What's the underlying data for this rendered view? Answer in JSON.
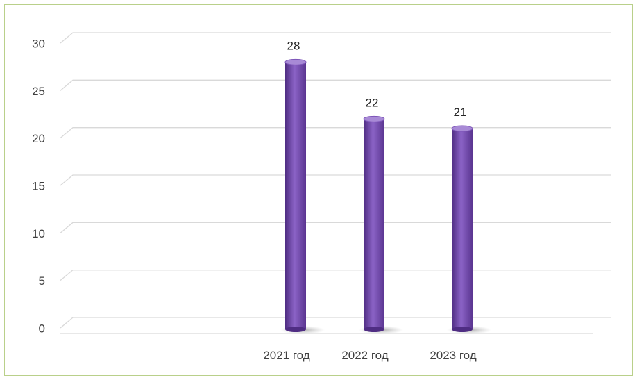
{
  "chart_data": {
    "type": "bar",
    "categories": [
      "2021 год",
      "2022 год",
      "2023 год"
    ],
    "values": [
      28,
      22,
      21
    ],
    "data_labels": [
      "28",
      "22",
      "21"
    ],
    "ylim": [
      0,
      30
    ],
    "yticks": [
      0,
      5,
      10,
      15,
      20,
      25,
      30
    ],
    "title": "",
    "xlabel": "",
    "ylabel": "",
    "grid": true,
    "legend": "none",
    "style": "3d-cylinder",
    "colors": {
      "bar": "#7d55b8",
      "bar_dark": "#4f2d83",
      "bar_light": "#a88ad6",
      "grid": "#d9d9d9",
      "frame": "#b9d08a",
      "text": "#404040"
    }
  }
}
